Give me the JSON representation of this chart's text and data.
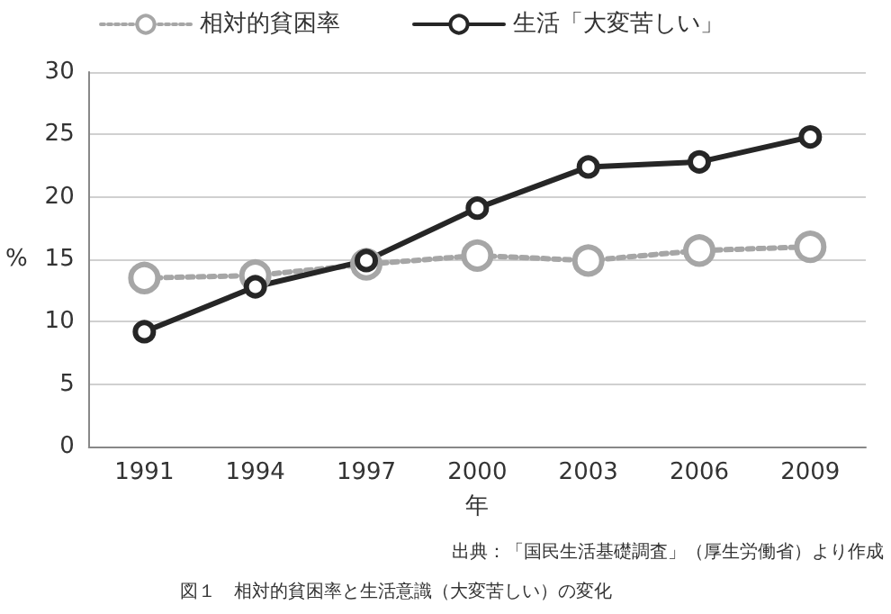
{
  "chart_data": {
    "type": "line",
    "xlabel": "年",
    "ylabel": "%",
    "categories": [
      "1991",
      "1994",
      "1997",
      "2000",
      "2003",
      "2006",
      "2009"
    ],
    "series": [
      {
        "name": "相対的貧困率",
        "color": "#a6a6a6",
        "line_style": "dotted",
        "values": [
          13.5,
          13.7,
          14.6,
          15.3,
          14.9,
          15.7,
          16.0
        ]
      },
      {
        "name": "生活「大変苦しい」",
        "color": "#262626",
        "line_style": "solid",
        "values": [
          9.2,
          12.8,
          14.9,
          19.1,
          22.4,
          22.8,
          24.8
        ]
      }
    ],
    "ylim": [
      0,
      30
    ],
    "yticks": [
      0,
      5,
      10,
      15,
      20,
      25,
      30
    ],
    "grid": "y",
    "legend": "top",
    "marker": "circle",
    "annotations": [
      "出典：「国民生活基礎調査」（厚生労働省）より作成",
      "図１　相対的貧困率と生活意識（大変苦しい）の変化"
    ]
  }
}
